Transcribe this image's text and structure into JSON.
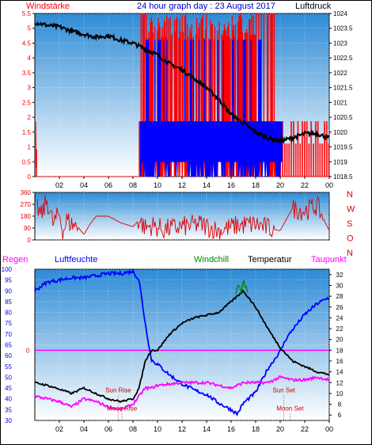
{
  "colors": {
    "wind": "#ff0000",
    "gust": "#0000ff",
    "pressure": "#000000",
    "direction": "#dd0000",
    "humidity": "#0000ff",
    "temperature": "#000000",
    "windchill": "#008800",
    "dewpoint": "#ff00ff",
    "rain": "#ff0000",
    "zero_line": "#ff00ff",
    "event": "#cc0000",
    "plot_top": "#2e8bd6",
    "plot_bottom": "#ffffff"
  },
  "header": {
    "left_label": "Windstärke",
    "title": "24 hour graph day : 23 August 2017",
    "right_label": "Luftdruck"
  },
  "bottom_header": {
    "rain": "Regen",
    "humidity": "Luftfeuchte",
    "windchill": "Windchill",
    "temperature": "Temperatur",
    "dewpoint": "Taupunkt"
  },
  "compass": [
    "N",
    "W",
    "S",
    "O",
    "N"
  ],
  "events": {
    "sun_rise": "Sun Rise",
    "moon_rise": "Moon Rise",
    "sun_set": "Sun Set",
    "moon_set": "Moon Set"
  },
  "chart_data": [
    {
      "type": "line",
      "title": "24 hour graph day : 23 August 2017",
      "x_ticks": [
        "02",
        "04",
        "06",
        "08",
        "10",
        "12",
        "14",
        "16",
        "18",
        "20",
        "22",
        "00"
      ],
      "y_left_label": "Windstärke",
      "y_left_ticks": [
        "5.5",
        "5",
        "4.5",
        "4",
        "3.5",
        "3",
        "2.5",
        "2",
        "1.5",
        "1",
        "0.5",
        "0"
      ],
      "ylim_left": [
        0,
        5.5
      ],
      "y_right_label": "Luftdruck",
      "y_right_ticks": [
        "1024",
        "1023.5",
        "1023",
        "1022.5",
        "1022",
        "1021.5",
        "1021",
        "1020.5",
        "1020",
        "1019.5",
        "1019",
        "1018.5"
      ],
      "ylim_right": [
        1018.5,
        1024
      ],
      "series": [
        {
          "name": "Luftdruck",
          "axis": "right",
          "x": [
            0,
            1,
            2,
            3,
            4,
            5,
            6,
            7,
            8,
            9,
            10,
            11,
            12,
            13,
            14,
            15,
            16,
            17,
            18,
            19,
            20,
            21,
            22,
            23,
            24
          ],
          "values": [
            1023.7,
            1023.6,
            1023.55,
            1023.4,
            1023.3,
            1023.2,
            1023.25,
            1023.1,
            1023.0,
            1022.8,
            1022.6,
            1022.3,
            1022.1,
            1021.8,
            1021.5,
            1021.1,
            1020.6,
            1020.3,
            1020.0,
            1019.8,
            1019.7,
            1019.8,
            1019.95,
            1019.95,
            1019.8
          ]
        }
      ]
    },
    {
      "type": "line",
      "x_ticks": [
        "02",
        "04",
        "06",
        "08",
        "10",
        "12",
        "14",
        "16",
        "18",
        "20",
        "22",
        "00"
      ],
      "y_ticks": [
        "360",
        "270",
        "180",
        "90",
        "0"
      ],
      "ylim": [
        0,
        360
      ],
      "series": [
        {
          "name": "direction",
          "x": [
            0.2,
            0.5,
            1.0,
            1.5,
            2.0,
            2.3,
            2.6,
            3.0,
            3.5,
            4.0,
            4.5,
            5.0,
            6.0,
            7.0,
            8.0,
            8.5,
            9.0,
            9.5,
            10.5,
            12.0,
            13.5,
            15.0,
            16.5,
            18.0,
            19.0,
            20.0,
            21.0,
            22.0,
            23.0,
            24.0
          ],
          "values": [
            250,
            180,
            300,
            120,
            200,
            60,
            150,
            120,
            100,
            40,
            120,
            180,
            180,
            130,
            100,
            150,
            90,
            110,
            80,
            100,
            120,
            70,
            110,
            120,
            90,
            70,
            240,
            220,
            260,
            70
          ]
        }
      ]
    },
    {
      "type": "line",
      "x_ticks": [
        "02",
        "04",
        "06",
        "08",
        "10",
        "12",
        "14",
        "16",
        "18",
        "20",
        "22",
        "00"
      ],
      "y_left_ticks": [
        "100",
        "95",
        "90",
        "85",
        "80",
        "75",
        "70",
        "65",
        "60",
        "55",
        "50",
        "45",
        "40",
        "35",
        "30"
      ],
      "ylim_left": [
        30,
        100
      ],
      "y_rain_ticks": [
        "0"
      ],
      "y_right_ticks": [
        "32",
        "30",
        "28",
        "26",
        "24",
        "22",
        "20",
        "18",
        "16",
        "14",
        "12",
        "10",
        "8",
        "6"
      ],
      "ylim_right": [
        5,
        33
      ],
      "series": [
        {
          "name": "Luftfeuchte",
          "axis": "left",
          "x": [
            0,
            1,
            2,
            3,
            4,
            5,
            6,
            7,
            8,
            8.5,
            9,
            9.5,
            10,
            11,
            12,
            13,
            14,
            15,
            16,
            16.5,
            17,
            18,
            19,
            20,
            20.5,
            21,
            22,
            23,
            24
          ],
          "values": [
            90,
            94,
            95,
            96,
            96,
            97,
            98,
            98,
            99,
            95,
            75,
            58,
            56,
            51,
            47,
            44,
            42,
            38,
            35,
            33,
            38,
            43,
            54,
            62,
            68,
            72,
            79,
            84,
            87
          ]
        },
        {
          "name": "Temperatur",
          "axis": "right",
          "x": [
            0,
            1,
            2,
            3,
            4,
            5,
            6,
            7,
            8,
            8.5,
            9,
            9.5,
            10,
            11,
            12,
            13,
            14,
            15,
            16,
            16.5,
            17,
            18,
            19,
            20,
            21,
            22,
            23,
            24
          ],
          "values": [
            12,
            11.5,
            10.8,
            10,
            11,
            10,
            9,
            8.5,
            9,
            11,
            16,
            18,
            18,
            21,
            23,
            24,
            24.5,
            25,
            27,
            28,
            29,
            26,
            22,
            18.5,
            16,
            15,
            14,
            13.5
          ]
        },
        {
          "name": "Windchill",
          "axis": "right",
          "x": [
            16.4,
            16.6,
            16.8,
            17.0,
            17.2,
            17.4
          ],
          "values": [
            28,
            30.5,
            28.5,
            31,
            29.5,
            28.5
          ]
        },
        {
          "name": "Taupunkt",
          "axis": "right",
          "x": [
            0,
            1,
            2,
            3,
            4,
            5,
            6,
            7,
            8,
            8.5,
            9,
            9.5,
            10,
            12,
            14,
            16,
            17,
            18,
            19,
            20,
            21,
            22,
            23,
            24
          ],
          "values": [
            9.5,
            9,
            8.5,
            7.5,
            9,
            8.5,
            7.5,
            7,
            8,
            9.5,
            11,
            11,
            11.5,
            12,
            12,
            11,
            12,
            12,
            12,
            13,
            12.5,
            12.5,
            13,
            12.5
          ]
        }
      ]
    }
  ]
}
